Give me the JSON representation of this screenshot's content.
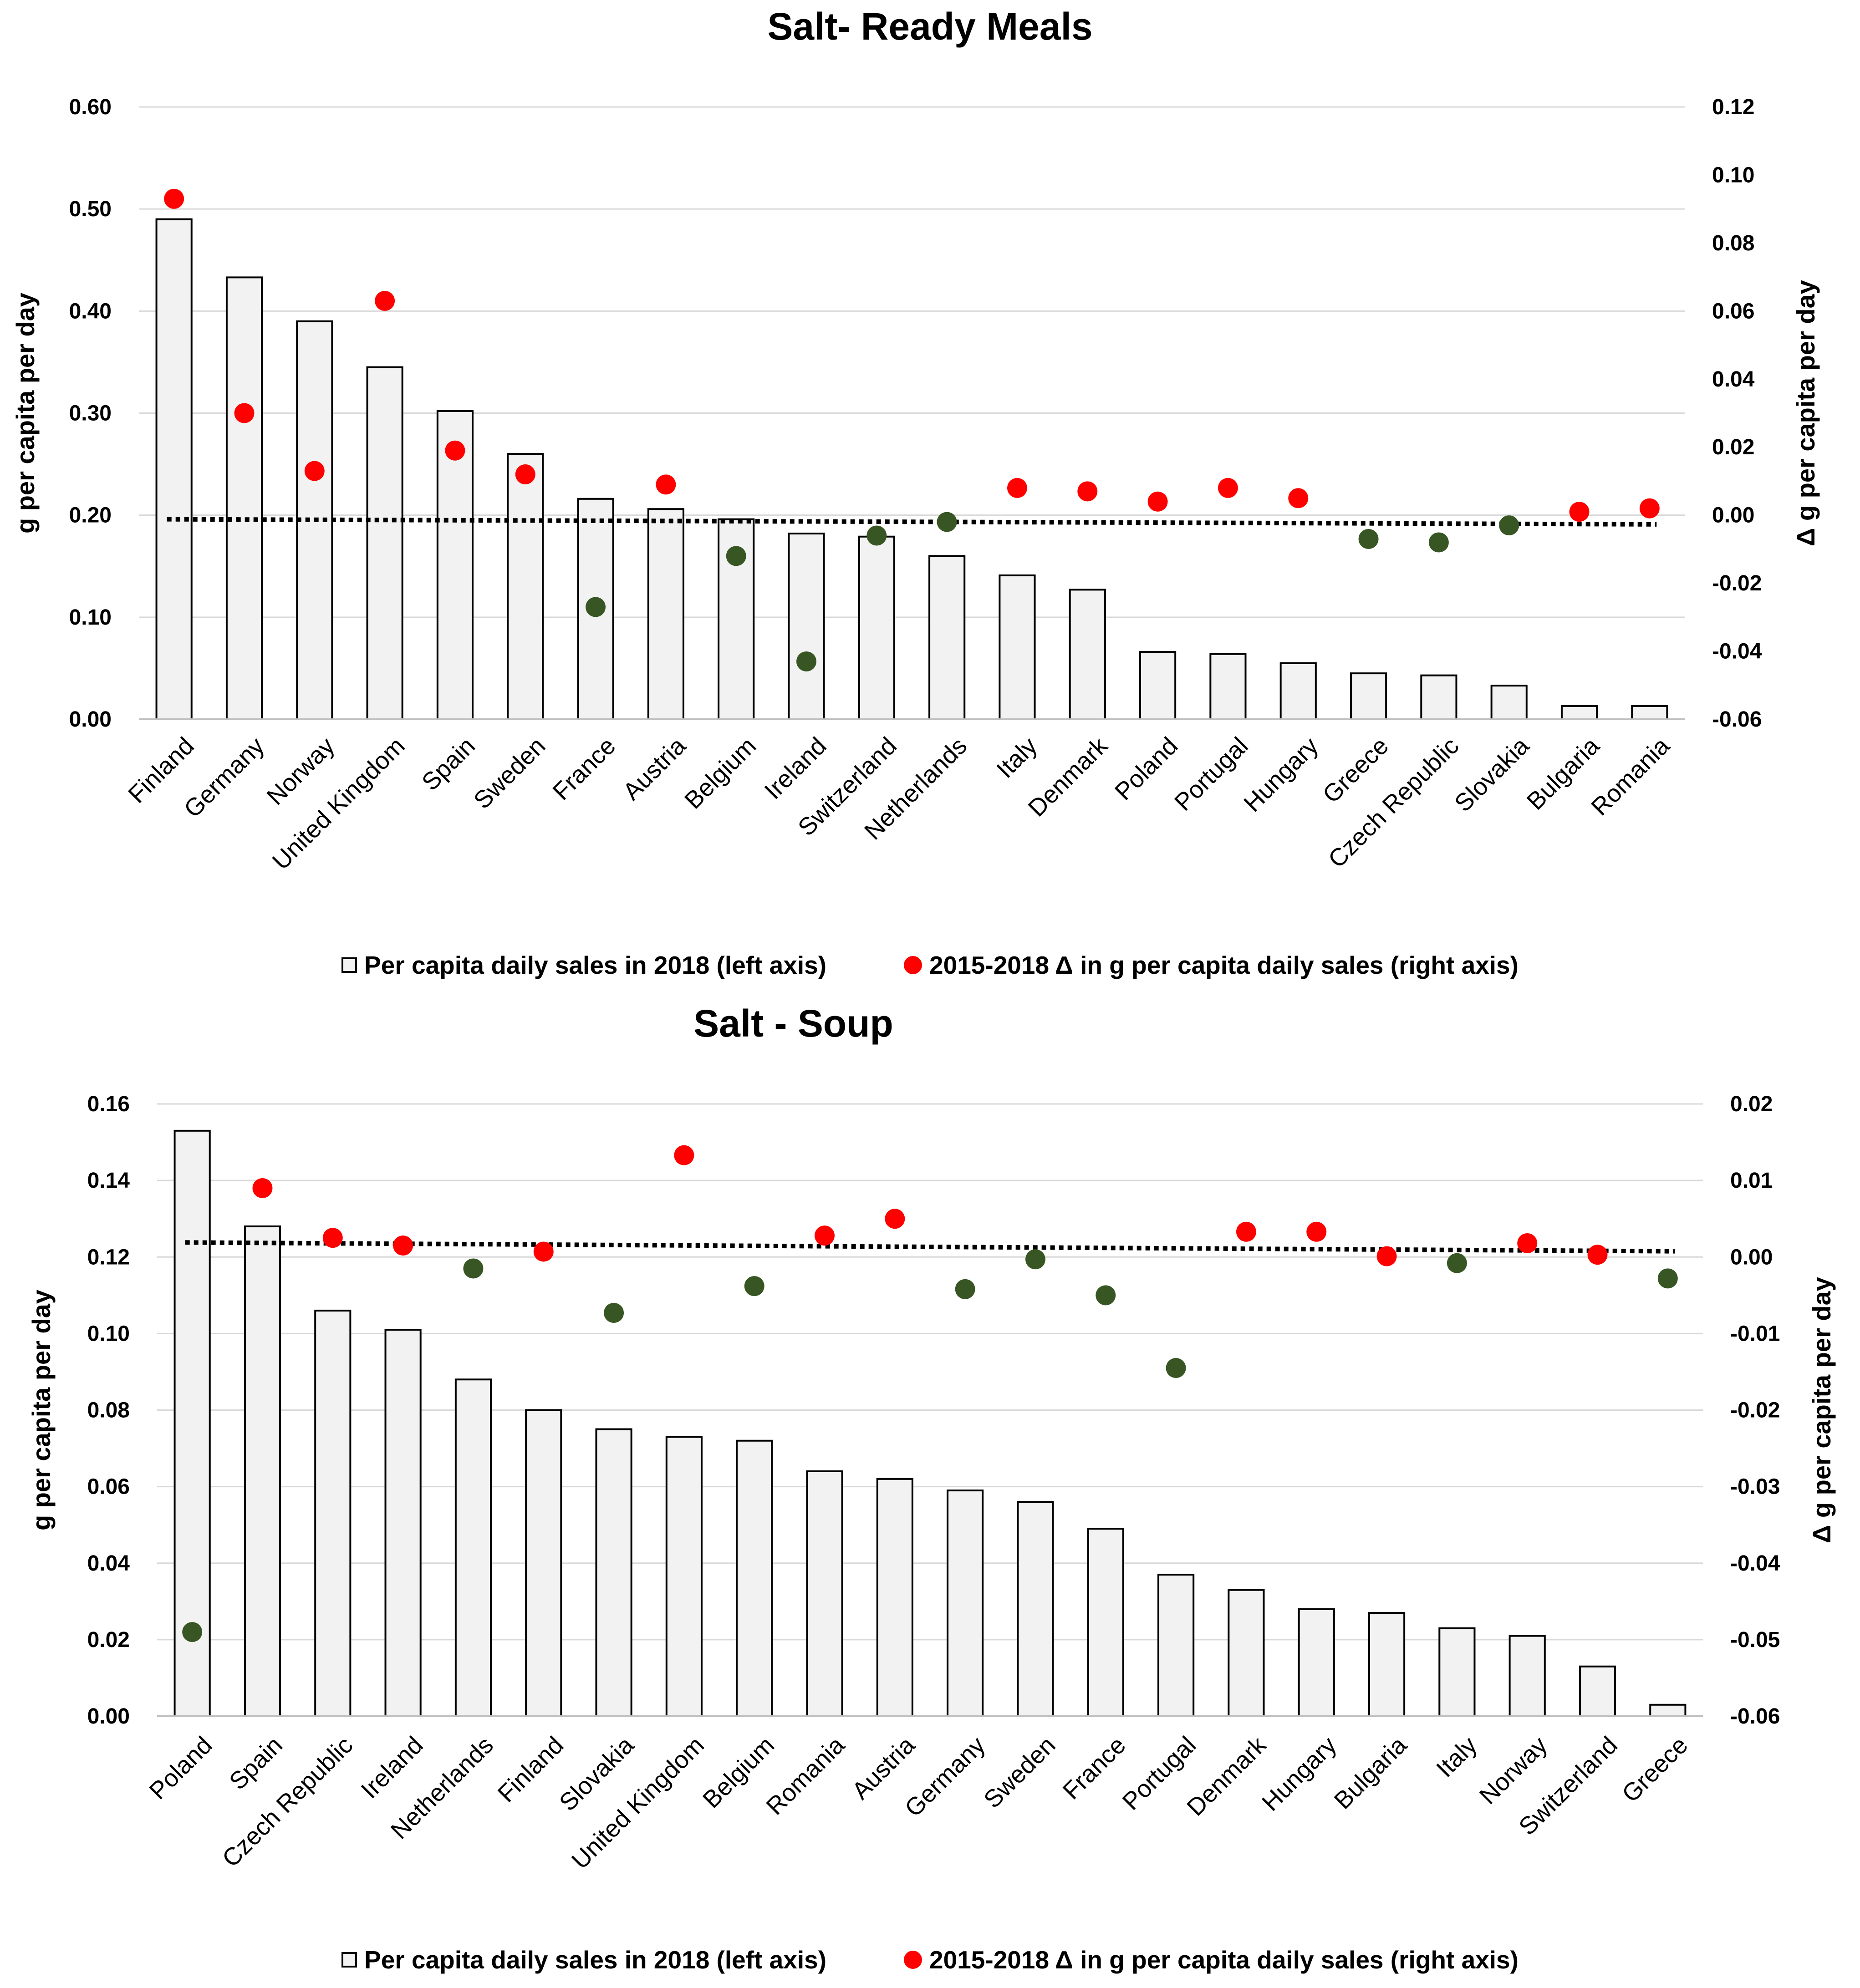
{
  "legend": {
    "bars_label": "Per capita daily sales in 2018 (left axis)",
    "dots_label": "2015-2018  Δ in g per capita daily sales (right axis)"
  },
  "colors": {
    "bar_fill": "#f2f2f2",
    "bar_stroke": "#000000",
    "increase": "#ff0000",
    "decrease": "#375623",
    "trend": "#000000",
    "grid": "#d9d9d9"
  },
  "chart_data": [
    {
      "type": "bar",
      "title": "Salt- Ready Meals",
      "ylabel": "g per capita per day",
      "y2label": "Δ g per capita per day",
      "ylim": [
        0,
        0.6
      ],
      "yticks": [
        "0.00",
        "0.10",
        "0.20",
        "0.30",
        "0.40",
        "0.50",
        "0.60"
      ],
      "y2lim": [
        -0.06,
        0.12
      ],
      "y2ticks": [
        "-0.06",
        "-0.04",
        "-0.02",
        "0.00",
        "0.02",
        "0.04",
        "0.06",
        "0.08",
        "0.10",
        "0.12"
      ],
      "grid": true,
      "categories": [
        "Finland",
        "Germany",
        "Norway",
        "United Kingdom",
        "Spain",
        "Sweden",
        "France",
        "Austria",
        "Belgium",
        "Ireland",
        "Switzerland",
        "Netherlands",
        "Italy",
        "Denmark",
        "Poland",
        "Portugal",
        "Hungary",
        "Greece",
        "Czech Republic",
        "Slovakia",
        "Bulgaria",
        "Romania"
      ],
      "series": [
        {
          "name": "Per capita daily sales in 2018 (left axis)",
          "axis": "left",
          "kind": "bar",
          "values": [
            0.49,
            0.433,
            0.39,
            0.345,
            0.302,
            0.26,
            0.216,
            0.206,
            0.196,
            0.182,
            0.179,
            0.16,
            0.141,
            0.127,
            0.066,
            0.064,
            0.055,
            0.045,
            0.043,
            0.033,
            0.013,
            0.013
          ]
        },
        {
          "name": "2015-2018  Δ in g per capita daily sales (right axis)",
          "axis": "right",
          "kind": "dot",
          "values": [
            0.093,
            0.03,
            0.013,
            0.063,
            0.019,
            0.012,
            -0.027,
            0.009,
            -0.012,
            -0.043,
            -0.006,
            -0.002,
            0.008,
            0.007,
            0.004,
            0.008,
            0.005,
            -0.007,
            -0.008,
            -0.003,
            0.001,
            0.002
          ]
        }
      ],
      "trendline": {
        "axis": "left",
        "start": 0.196,
        "end": 0.191
      }
    },
    {
      "type": "bar",
      "title": "Salt - Soup",
      "ylabel": "g per capita per day",
      "y2label": "Δ g per capita per day",
      "ylim": [
        0,
        0.16
      ],
      "yticks": [
        "0.00",
        "0.02",
        "0.04",
        "0.06",
        "0.08",
        "0.10",
        "0.12",
        "0.14",
        "0.16"
      ],
      "y2lim": [
        -0.06,
        0.02
      ],
      "y2ticks": [
        "-0.06",
        "-0.05",
        "-0.04",
        "-0.03",
        "-0.02",
        "-0.01",
        "0.00",
        "0.01",
        "0.02"
      ],
      "grid": true,
      "categories": [
        "Poland",
        "Spain",
        "Czech Republic",
        "Ireland",
        "Netherlands",
        "Finland",
        "Slovakia",
        "United Kingdom",
        "Belgium",
        "Romania",
        "Austria",
        "Germany",
        "Sweden",
        "France",
        "Portugal",
        "Denmark",
        "Hungary",
        "Bulgaria",
        "Italy",
        "Norway",
        "Switzerland",
        "Greece"
      ],
      "series": [
        {
          "name": "Per capita daily sales in 2018 (left axis)",
          "axis": "left",
          "kind": "bar",
          "values": [
            0.153,
            0.128,
            0.106,
            0.101,
            0.088,
            0.08,
            0.075,
            0.073,
            0.072,
            0.064,
            0.062,
            0.059,
            0.056,
            0.049,
            0.037,
            0.033,
            0.028,
            0.027,
            0.023,
            0.021,
            0.013,
            0.003
          ]
        },
        {
          "name": "2015-2018  Δ in g per capita daily sales (right axis)",
          "axis": "right",
          "kind": "dot",
          "values": [
            -0.049,
            0.009,
            0.0025,
            0.0015,
            -0.0015,
            0.0007,
            -0.0073,
            0.0133,
            -0.0038,
            0.0028,
            0.005,
            -0.0042,
            -0.0003,
            -0.005,
            -0.0145,
            0.0033,
            0.0033,
            0.0001,
            -0.0008,
            0.0018,
            0.0003,
            -0.0028
          ]
        }
      ],
      "trendline": {
        "axis": "left",
        "start": 0.1238,
        "end": 0.1215
      }
    }
  ]
}
